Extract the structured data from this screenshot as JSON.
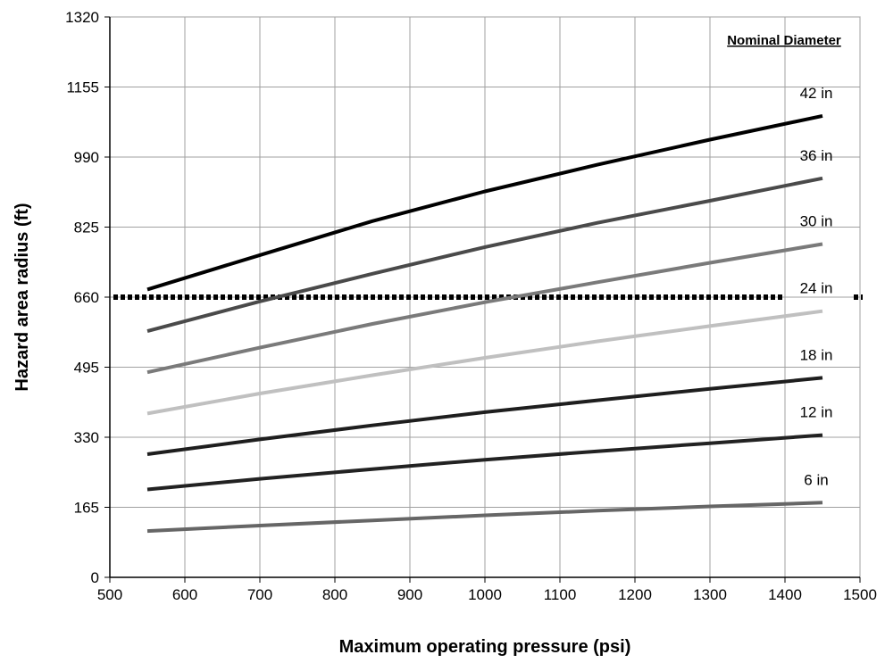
{
  "chart_data": {
    "type": "line",
    "xlabel": "Maximum operating pressure (psi)",
    "ylabel": "Hazard area radius (ft)",
    "xlim": [
      500,
      1500
    ],
    "ylim": [
      0,
      1320
    ],
    "x_ticks": [
      500,
      600,
      700,
      800,
      900,
      1000,
      1100,
      1200,
      1300,
      1400,
      1500
    ],
    "y_ticks": [
      0,
      165,
      330,
      495,
      660,
      825,
      990,
      1155,
      1320
    ],
    "grid": true,
    "legend_title": "Nominal Diameter",
    "legend_placement": "right, labels above line ends",
    "reference_line": {
      "y": 660,
      "style": "dotted"
    },
    "series": [
      {
        "name": "42 in",
        "color": "#000000",
        "x": [
          550,
          700,
          850,
          1000,
          1150,
          1300,
          1450
        ],
        "values": [
          678,
          759,
          839,
          909,
          972,
          1031,
          1087
        ]
      },
      {
        "name": "36 in",
        "color": "#4a4a4a",
        "x": [
          550,
          700,
          850,
          1000,
          1150,
          1300,
          1450
        ],
        "values": [
          580,
          650,
          715,
          778,
          835,
          887,
          940
        ]
      },
      {
        "name": "30 in",
        "color": "#7a7a7a",
        "x": [
          550,
          700,
          850,
          1000,
          1150,
          1300,
          1450
        ],
        "values": [
          483,
          541,
          597,
          648,
          695,
          741,
          785
        ]
      },
      {
        "name": "24 in",
        "color": "#c0c0c0",
        "x": [
          550,
          700,
          850,
          1000,
          1150,
          1300,
          1450
        ],
        "values": [
          386,
          433,
          476,
          517,
          556,
          592,
          627
        ]
      },
      {
        "name": "18 in",
        "color": "#1e1e1e",
        "x": [
          550,
          700,
          850,
          1000,
          1150,
          1300,
          1450
        ],
        "values": [
          290,
          325,
          358,
          389,
          417,
          444,
          470
        ]
      },
      {
        "name": "12 in",
        "color": "#222222",
        "x": [
          550,
          700,
          850,
          1000,
          1150,
          1300,
          1450
        ],
        "values": [
          207,
          232,
          255,
          277,
          297,
          316,
          335
        ]
      },
      {
        "name": "6 in",
        "color": "#666666",
        "x": [
          550,
          700,
          850,
          1000,
          1150,
          1300,
          1450
        ],
        "values": [
          109,
          122,
          134,
          146,
          157,
          167,
          176
        ]
      }
    ]
  }
}
